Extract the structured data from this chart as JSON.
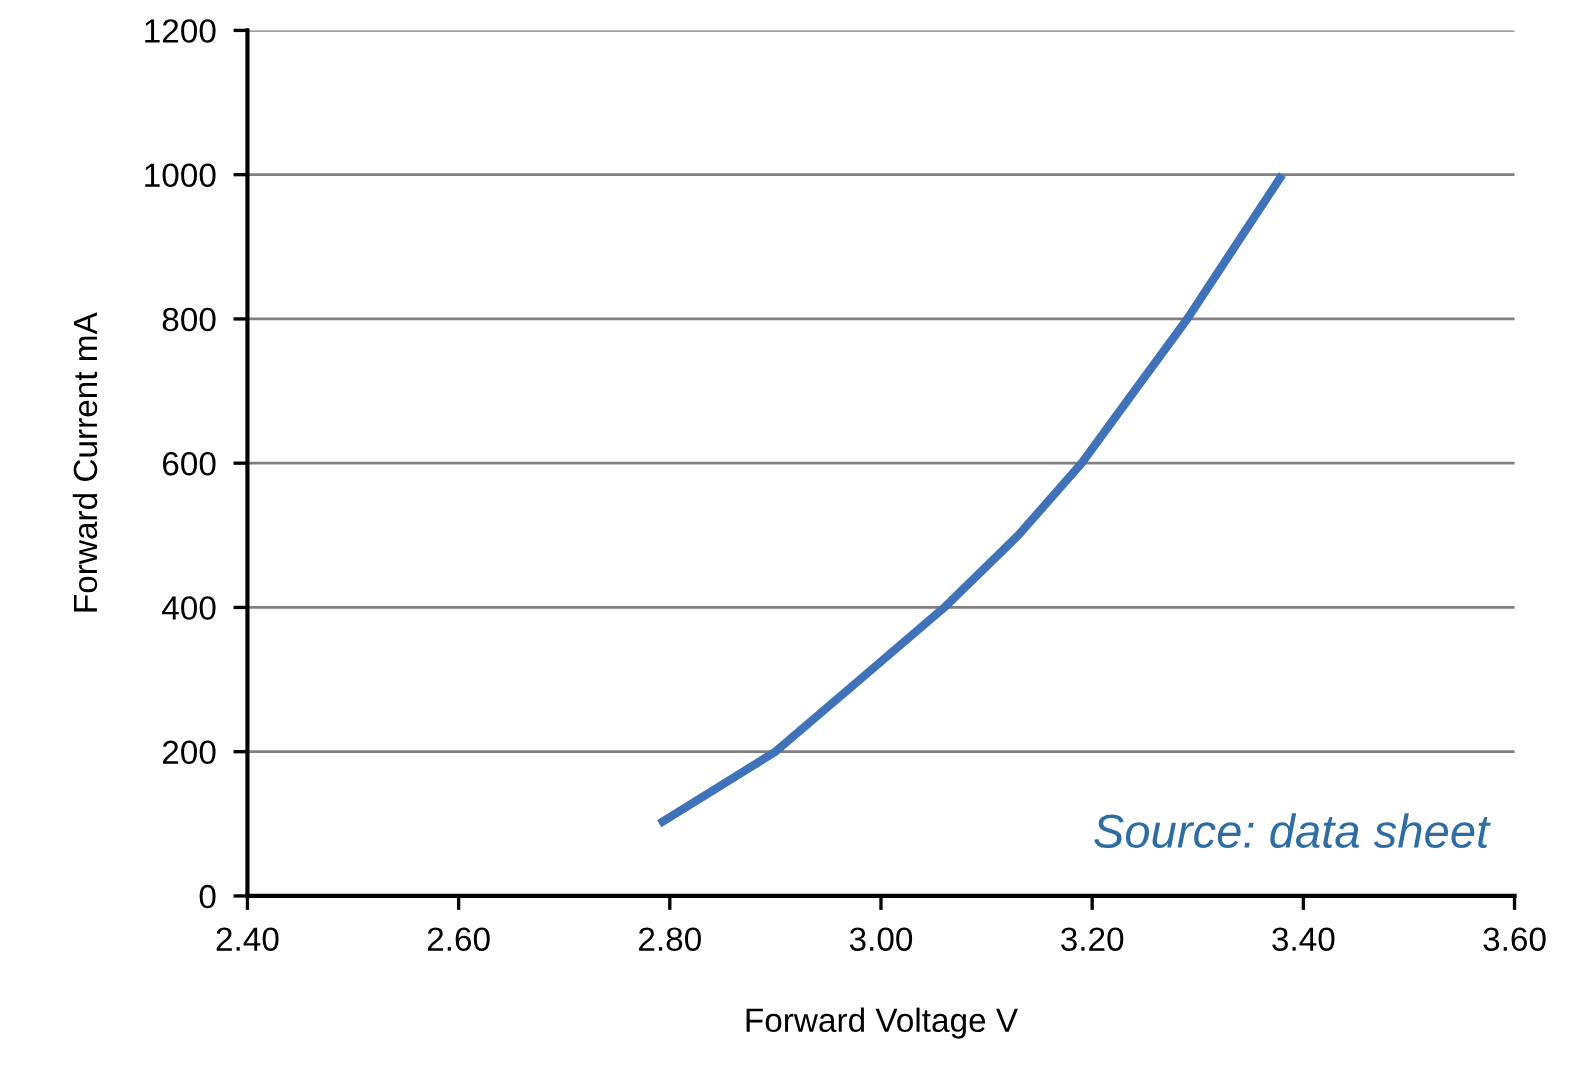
{
  "chart_data": {
    "type": "line",
    "xlabel": "Forward Voltage V",
    "ylabel": "Forward Current mA",
    "x": [
      2.79,
      2.9,
      2.98,
      3.06,
      3.13,
      3.19,
      3.24,
      3.29,
      3.335,
      3.38
    ],
    "series": [
      {
        "color": "#3f72b8",
        "values": [
          100,
          200,
          300,
          400,
          500,
          600,
          700,
          800,
          900,
          1000
        ]
      }
    ],
    "xlim": [
      2.4,
      3.6
    ],
    "xticks": [
      {
        "value": 2.4,
        "label": "2.40"
      },
      {
        "value": 2.6,
        "label": "2.60"
      },
      {
        "value": 2.8,
        "label": "2.80"
      },
      {
        "value": 3.0,
        "label": "3.00"
      },
      {
        "value": 3.2,
        "label": "3.20"
      },
      {
        "value": 3.4,
        "label": "3.40"
      },
      {
        "value": 3.6,
        "label": "3.60"
      }
    ],
    "ylim": [
      0,
      1200
    ],
    "yticks": [
      0,
      200,
      400,
      600,
      800,
      1000,
      1200
    ],
    "grid": "y",
    "marker": "none",
    "line_style": "solid",
    "annotations": [
      "Source: data sheet"
    ]
  }
}
